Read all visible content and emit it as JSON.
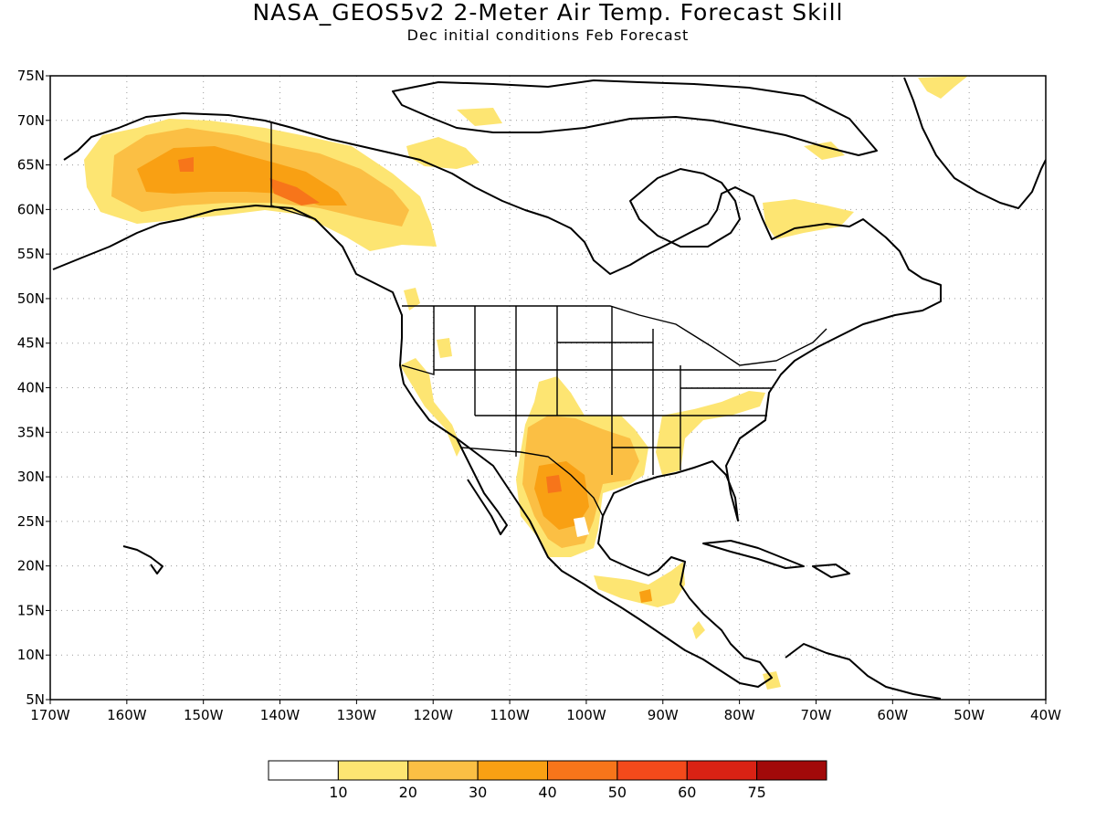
{
  "title": "NASA_GEOS5v2 2-Meter Air Temp. Forecast Skill",
  "subtitle": "Dec initial conditions  Feb Forecast",
  "map": {
    "lon_range": [
      -170,
      -40
    ],
    "lat_range": [
      5,
      75
    ],
    "lon_ticks": [
      "170W",
      "160W",
      "150W",
      "140W",
      "130W",
      "120W",
      "110W",
      "100W",
      "90W",
      "80W",
      "70W",
      "60W",
      "50W",
      "40W"
    ],
    "lat_ticks": [
      "75N",
      "70N",
      "65N",
      "60N",
      "55N",
      "50N",
      "45N",
      "40N",
      "35N",
      "30N",
      "25N",
      "20N",
      "15N",
      "10N",
      "5N"
    ],
    "grid": true
  },
  "colorbar": {
    "colors": [
      "#ffffff",
      "#fde572",
      "#fbbf44",
      "#f9a013",
      "#f7751a",
      "#f34a1b",
      "#d92214",
      "#a20909"
    ],
    "labels": [
      "10",
      "20",
      "30",
      "40",
      "50",
      "60",
      "75"
    ]
  }
}
